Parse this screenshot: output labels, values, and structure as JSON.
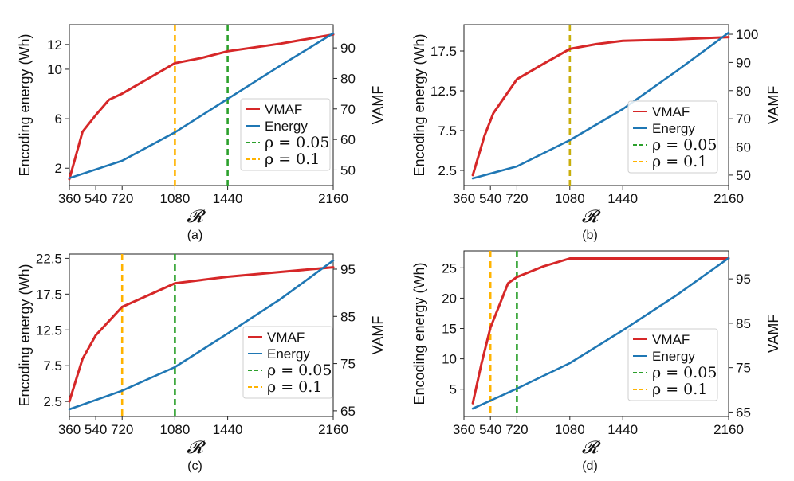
{
  "chart_data": [
    {
      "type": "line",
      "caption": "(a)",
      "ylabel": "Encoding energy (Wh)",
      "y2label": "VAMF",
      "xlabel": "𝓡",
      "xlim": [
        360,
        2160
      ],
      "xticks": [
        360,
        540,
        720,
        1080,
        1440,
        2160
      ],
      "ylim": [
        0.6,
        13.6
      ],
      "yticks": [
        2,
        6,
        10,
        12
      ],
      "y2lim": [
        44.9,
        97.6
      ],
      "y2ticks": [
        50,
        60,
        70,
        80,
        90
      ],
      "series": [
        {
          "name": "VMAF",
          "axis": "right",
          "color": "#d62728",
          "x": [
            360,
            450,
            540,
            630,
            720,
            900,
            1080,
            1260,
            1440,
            1800,
            2160
          ],
          "values": [
            47,
            62.5,
            68,
            73,
            75,
            80,
            85,
            86.7,
            88.9,
            91.4,
            94.4
          ]
        },
        {
          "name": "Energy",
          "axis": "left",
          "color": "#1f77b4",
          "x": [
            360,
            720,
            1080,
            1440,
            1800,
            2160
          ],
          "values": [
            1.2,
            2.6,
            4.9,
            7.6,
            10.3,
            12.9
          ]
        }
      ],
      "vlines": [
        {
          "label": "ρ = 0.05",
          "x": 1440,
          "color": "#2ca02c"
        },
        {
          "label": "ρ = 0.1",
          "x": 1080,
          "color": "#ffb300"
        }
      ],
      "legend": {
        "position": "right",
        "entries": [
          {
            "label": "VMAF",
            "color": "#d62728",
            "style": "solid"
          },
          {
            "label": "Energy",
            "color": "#1f77b4",
            "style": "solid"
          },
          {
            "label": "ρ = 0.05",
            "color": "#2ca02c",
            "style": "dashed"
          },
          {
            "label": "ρ = 0.1",
            "color": "#ffb300",
            "style": "dashed"
          }
        ]
      }
    },
    {
      "type": "line",
      "caption": "(b)",
      "ylabel": "Encoding energy (Wh)",
      "y2label": "VAMF",
      "xlabel": "𝓡",
      "xlim": [
        360,
        2160
      ],
      "xticks": [
        360,
        540,
        720,
        1080,
        1440,
        2160
      ],
      "ylim": [
        0.6,
        20.8
      ],
      "yticks": [
        2.5,
        7.5,
        12.5,
        17.5
      ],
      "y2lim": [
        46.3,
        103.4
      ],
      "y2ticks": [
        50,
        60,
        70,
        80,
        90,
        100
      ],
      "series": [
        {
          "name": "VMAF",
          "axis": "right",
          "color": "#d62728",
          "x": [
            420,
            500,
            560,
            640,
            720,
            900,
            1080,
            1260,
            1440,
            1800,
            2160
          ],
          "values": [
            50,
            64,
            72,
            78,
            84,
            89.5,
            94.8,
            96.5,
            97.7,
            98.2,
            99
          ]
        },
        {
          "name": "Energy",
          "axis": "left",
          "color": "#1f77b4",
          "x": [
            420,
            720,
            1080,
            1440,
            1800,
            2160
          ],
          "values": [
            1.5,
            3.0,
            6.3,
            10.2,
            14.9,
            19.8
          ]
        }
      ],
      "vlines": [
        {
          "label": "ρ = 0.05",
          "x": 1080,
          "color": "#2ca02c"
        },
        {
          "label": "ρ = 0.1",
          "x": 1080,
          "color": "#ffb300"
        }
      ],
      "legend": {
        "position": "bottom-right",
        "entries": [
          {
            "label": "VMAF",
            "color": "#d62728",
            "style": "solid"
          },
          {
            "label": "Energy",
            "color": "#1f77b4",
            "style": "solid"
          },
          {
            "label": "ρ = 0.05",
            "color": "#2ca02c",
            "style": "dashed"
          },
          {
            "label": "ρ = 0.1",
            "color": "#ffb300",
            "style": "dashed"
          }
        ]
      }
    },
    {
      "type": "line",
      "caption": "(c)",
      "ylabel": "Encoding energy (Wh)",
      "y2label": "VAMF",
      "xlabel": "𝓡",
      "xlim": [
        360,
        2160
      ],
      "xticks": [
        360,
        540,
        720,
        1080,
        1440,
        2160
      ],
      "ylim": [
        0.4,
        23.1
      ],
      "yticks": [
        2.5,
        7.5,
        12.5,
        17.5,
        22.5
      ],
      "y2lim": [
        63.8,
        98.2
      ],
      "y2ticks": [
        65,
        75,
        85,
        95
      ],
      "series": [
        {
          "name": "VMAF",
          "axis": "right",
          "color": "#d62728",
          "x": [
            360,
            450,
            540,
            630,
            720,
            900,
            1080,
            1260,
            1440,
            1800,
            2160
          ],
          "values": [
            67,
            76,
            81,
            84,
            87,
            89.5,
            92,
            92.7,
            93.4,
            94.4,
            95.4
          ]
        },
        {
          "name": "Energy",
          "axis": "left",
          "color": "#1f77b4",
          "x": [
            360,
            720,
            1080,
            1440,
            1800,
            2160
          ],
          "values": [
            1.4,
            4.0,
            7.3,
            12.0,
            16.8,
            22.2
          ]
        }
      ],
      "vlines": [
        {
          "label": "ρ = 0.05",
          "x": 1080,
          "color": "#2ca02c"
        },
        {
          "label": "ρ = 0.1",
          "x": 720,
          "color": "#ffb300"
        }
      ],
      "legend": {
        "position": "bottom-right",
        "entries": [
          {
            "label": "VMAF",
            "color": "#d62728",
            "style": "solid"
          },
          {
            "label": "Energy",
            "color": "#1f77b4",
            "style": "solid"
          },
          {
            "label": "ρ = 0.05",
            "color": "#2ca02c",
            "style": "dashed"
          },
          {
            "label": "ρ = 0.1",
            "color": "#ffb300",
            "style": "dashed"
          }
        ]
      }
    },
    {
      "type": "line",
      "caption": "(d)",
      "ylabel": "Encoding energy (Wh)",
      "y2label": "VAMF",
      "xlabel": "𝓡",
      "xlim": [
        360,
        2160
      ],
      "xticks": [
        360,
        540,
        720,
        1080,
        1440,
        2160
      ],
      "ylim": [
        0.5,
        27.8
      ],
      "yticks": [
        5,
        10,
        15,
        20,
        25
      ],
      "y2lim": [
        64.0,
        101.3
      ],
      "y2ticks": [
        65,
        75,
        85,
        95
      ],
      "series": [
        {
          "name": "VMAF",
          "axis": "right",
          "color": "#d62728",
          "x": [
            420,
            480,
            540,
            600,
            660,
            720,
            900,
            1080,
            1260,
            1440,
            1800,
            2160
          ],
          "values": [
            67,
            76,
            84,
            89,
            94,
            95.4,
            97.8,
            99.6,
            99.6,
            99.6,
            99.6,
            99.6
          ]
        },
        {
          "name": "Energy",
          "axis": "left",
          "color": "#1f77b4",
          "x": [
            420,
            720,
            1080,
            1440,
            1800,
            2160
          ],
          "values": [
            1.8,
            5.1,
            9.3,
            14.7,
            20.4,
            26.6
          ]
        }
      ],
      "vlines": [
        {
          "label": "ρ = 0.05",
          "x": 720,
          "color": "#2ca02c"
        },
        {
          "label": "ρ = 0.1",
          "x": 540,
          "color": "#ffb300"
        }
      ],
      "legend": {
        "position": "bottom-right",
        "entries": [
          {
            "label": "VMAF",
            "color": "#d62728",
            "style": "solid"
          },
          {
            "label": "Energy",
            "color": "#1f77b4",
            "style": "solid"
          },
          {
            "label": "ρ = 0.05",
            "color": "#2ca02c",
            "style": "dashed"
          },
          {
            "label": "ρ = 0.1",
            "color": "#ffb300",
            "style": "dashed"
          }
        ]
      }
    }
  ]
}
